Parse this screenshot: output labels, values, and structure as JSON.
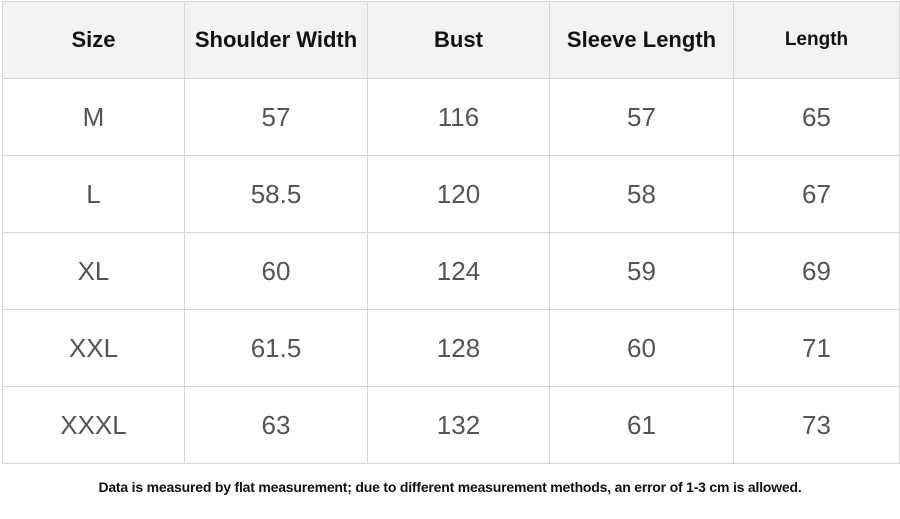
{
  "table": {
    "headers": [
      "Size",
      "Shoulder Width",
      "Bust",
      "Sleeve Length",
      "Length"
    ],
    "rows": [
      [
        "M",
        "57",
        "116",
        "57",
        "65"
      ],
      [
        "L",
        "58.5",
        "120",
        "58",
        "67"
      ],
      [
        "XL",
        "60",
        "124",
        "59",
        "69"
      ],
      [
        "XXL",
        "61.5",
        "128",
        "60",
        "71"
      ],
      [
        "XXXL",
        "63",
        "132",
        "61",
        "73"
      ]
    ]
  },
  "note": "Data is measured by flat measurement; due to different measurement methods, an error of 1-3 cm is allowed."
}
